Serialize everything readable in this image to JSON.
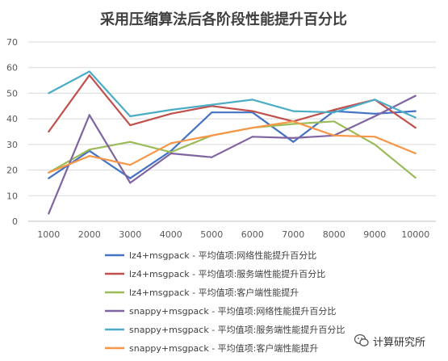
{
  "chart_data": {
    "type": "line",
    "title": "采用压缩算法后各阶段性能提升百分比",
    "xlabel": "",
    "ylabel": "",
    "categories": [
      "1000",
      "2000",
      "3000",
      "4000",
      "5000",
      "6000",
      "7000",
      "8000",
      "9000",
      "10000"
    ],
    "ylim": [
      0,
      70
    ],
    "yticks": [
      0,
      10,
      20,
      30,
      40,
      50,
      60,
      70
    ],
    "grid": true,
    "legend_position": "bottom",
    "series": [
      {
        "name": "lz4+msgpack - 平均值项:网络性能提升百分比",
        "color": "#4472c4",
        "values": [
          16.8,
          27.5,
          16.8,
          27.5,
          42.5,
          42.5,
          31.0,
          43.0,
          42.0,
          43.0
        ]
      },
      {
        "name": "lz4+msgpack - 平均值项:服务端性能提升百分比",
        "color": "#c0504d",
        "values": [
          35.0,
          57.0,
          37.5,
          42.0,
          45.0,
          43.0,
          39.0,
          43.5,
          47.5,
          36.5
        ]
      },
      {
        "name": "lz4+msgpack - 平均值项:客户端性能提升",
        "color": "#9bbb59",
        "values": [
          19.0,
          28.0,
          31.0,
          27.0,
          33.5,
          36.5,
          38.0,
          39.0,
          30.0,
          17.0
        ]
      },
      {
        "name": "snappy+msgpack - 平均值项:网络性能提升百分比",
        "color": "#8064a2",
        "values": [
          3.0,
          41.5,
          15.0,
          26.5,
          25.0,
          33.0,
          32.5,
          33.5,
          41.0,
          49.0
        ]
      },
      {
        "name": "snappy+msgpack - 平均值项:服务端性能提升百分比",
        "color": "#4bacc6",
        "values": [
          50.0,
          58.5,
          41.0,
          43.5,
          45.5,
          47.5,
          43.0,
          42.5,
          47.5,
          40.5
        ]
      },
      {
        "name": "snappy+msgpack - 平均值项:客户端性能提升",
        "color": "#f79646",
        "values": [
          19.0,
          25.5,
          22.0,
          30.5,
          33.5,
          36.5,
          39.0,
          33.5,
          33.0,
          26.5
        ]
      }
    ]
  },
  "watermark": {
    "label": "计算研究所",
    "icon": "wechat-logo-icon"
  }
}
